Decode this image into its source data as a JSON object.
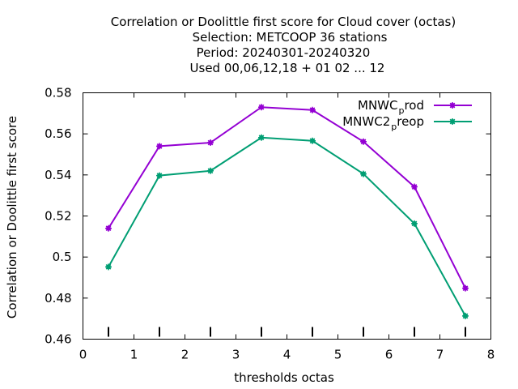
{
  "chart_data": {
    "type": "line",
    "title_lines": [
      "Correlation or Doolittle first score  for Cloud cover (octas)",
      "Selection: METCOOP     36 stations",
      "Period: 20240301-20240320",
      "Used  00,06,12,18 + 01 02 ... 12"
    ],
    "xlabel": "thresholds octas",
    "ylabel": "Correlation or Doolittle first score",
    "xlim": [
      0,
      8
    ],
    "ylim": [
      0.46,
      0.58
    ],
    "xticks": [
      0,
      1,
      2,
      3,
      4,
      5,
      6,
      7,
      8
    ],
    "xtick_labels": [
      "0",
      "1",
      "2",
      "3",
      "4",
      "5",
      "6",
      "7",
      "8"
    ],
    "yticks": [
      0.46,
      0.48,
      0.5,
      0.52,
      0.54,
      0.56,
      0.58
    ],
    "ytick_labels": [
      "0.46",
      "0.48",
      "0.5",
      "0.52",
      "0.54",
      "0.56",
      "0.58"
    ],
    "x": [
      0.5,
      1.5,
      2.5,
      3.5,
      4.5,
      5.5,
      6.5,
      7.5
    ],
    "grid": false,
    "legend_position": "top-right",
    "series": [
      {
        "name": "MNWC_prod",
        "legend_parts": [
          "MNWC",
          "p",
          "rod"
        ],
        "color": "#9400d3",
        "values": [
          0.514,
          0.554,
          0.5557,
          0.573,
          0.5716,
          0.5562,
          0.5342,
          0.4848
        ]
      },
      {
        "name": "MNWC2_preop",
        "legend_parts": [
          "MNWC2",
          "p",
          "reop"
        ],
        "color": "#009e73",
        "values": [
          0.4952,
          0.5397,
          0.542,
          0.5582,
          0.5566,
          0.5405,
          0.5163,
          0.4713
        ]
      }
    ]
  }
}
